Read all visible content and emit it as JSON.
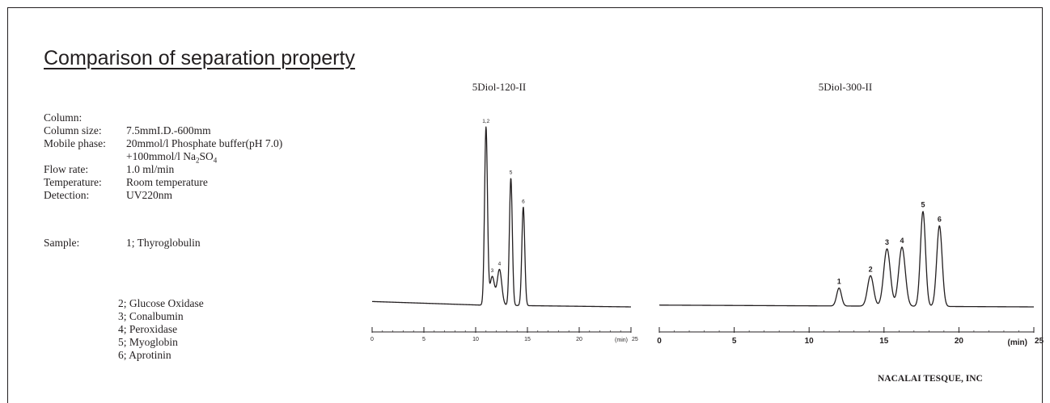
{
  "page": {
    "title": "Comparison of separation property",
    "credit": "NACALAI TESQUE, INC"
  },
  "conditions": [
    {
      "label": "Column:",
      "value": ""
    },
    {
      "label": "Column size:",
      "value": "7.5mmI.D.-600mm"
    },
    {
      "label": "Mobile phase:",
      "value": "20mmol/l Phosphate buffer(pH 7.0)"
    },
    {
      "label": "",
      "value": "+100mmol/l Na2SO4"
    },
    {
      "label": "Flow rate:",
      "value": "1.0 ml/min"
    },
    {
      "label": "Temperature:",
      "value": "Room temperature"
    },
    {
      "label": "Detection:",
      "value": "UV220nm"
    }
  ],
  "sample_label": "Sample:",
  "samples": [
    "1; Thyroglobulin",
    "2; Glucose Oxidase",
    "3; Conalbumin",
    "4; Peroxidase",
    "5; Myoglobin",
    "6; Aprotinin"
  ],
  "chart_data": [
    {
      "type": "line",
      "title": "5Diol-120-II",
      "x_unit_label": "(min)",
      "xlim": [
        0,
        25
      ],
      "xticks": [
        0,
        5,
        10,
        15,
        20,
        25
      ],
      "ylim": [
        0,
        1
      ],
      "baseline": [
        [
          0,
          0.03
        ],
        [
          10.5,
          0.01
        ],
        [
          25,
          0.0
        ]
      ],
      "peaks": [
        {
          "label": "1,2",
          "time": 11.0,
          "height": 0.99,
          "width": 0.14
        },
        {
          "label": "3",
          "time": 11.6,
          "height": 0.16,
          "width": 0.22
        },
        {
          "label": "4",
          "time": 12.3,
          "height": 0.2,
          "width": 0.22
        },
        {
          "label": "5",
          "time": 13.4,
          "height": 0.71,
          "width": 0.14
        },
        {
          "label": "6",
          "time": 14.6,
          "height": 0.55,
          "width": 0.14
        }
      ]
    },
    {
      "type": "line",
      "title": "5Diol-300-II",
      "x_unit_label": "(min)",
      "xlim": [
        0,
        25
      ],
      "xticks": [
        0,
        5,
        10,
        15,
        20,
        25
      ],
      "ylim": [
        0,
        1
      ],
      "baseline": [
        [
          0,
          0.01
        ],
        [
          25,
          0.0
        ]
      ],
      "peaks": [
        {
          "label": "1",
          "time": 12.0,
          "height": 0.1,
          "width": 0.16
        },
        {
          "label": "2",
          "time": 14.1,
          "height": 0.17,
          "width": 0.2
        },
        {
          "label": "3",
          "time": 15.2,
          "height": 0.32,
          "width": 0.22
        },
        {
          "label": "4",
          "time": 16.2,
          "height": 0.33,
          "width": 0.22
        },
        {
          "label": "5",
          "time": 17.6,
          "height": 0.53,
          "width": 0.17
        },
        {
          "label": "6",
          "time": 18.7,
          "height": 0.45,
          "width": 0.18
        }
      ]
    }
  ]
}
